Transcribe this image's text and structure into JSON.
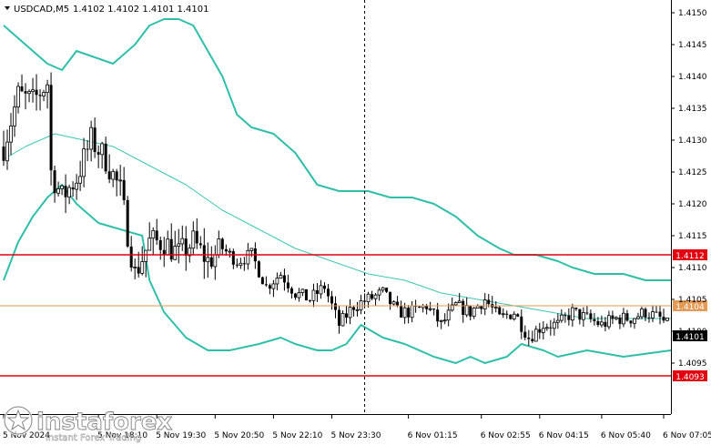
{
  "header": {
    "symbol": "USDCAD,M5",
    "ohlc": "1.4102 1.4102 1.4101 1.4101"
  },
  "watermark": {
    "brand": "instaforex",
    "tagline": "Instant Forex Trading"
  },
  "colors": {
    "candle": "#000000",
    "band": "#2fbfa8",
    "ma": "#3cc6b2",
    "level": "#e3000f",
    "bid": "#e39a55",
    "grid": "#000000",
    "current_price_bg": "#000000"
  },
  "chart_data": {
    "type": "candlestick",
    "ylim": [
      1.4087,
      1.4152
    ],
    "y_ticks": [
      "1.4150",
      "1.4145",
      "1.4140",
      "1.4135",
      "1.4130",
      "1.4125",
      "1.4120",
      "1.4115",
      "1.4110",
      "1.4105",
      "1.4100",
      "1.4095"
    ],
    "x_ticks": [
      {
        "label": "5 Nov 2024",
        "i": 0
      },
      {
        "label": "5 Nov 18:10",
        "i": 26
      },
      {
        "label": "5 Nov 19:30",
        "i": 42
      },
      {
        "label": "5 Nov 20:50",
        "i": 58
      },
      {
        "label": "5 Nov 22:10",
        "i": 74
      },
      {
        "label": "5 Nov 23:30",
        "i": 90
      },
      {
        "label": "6 Nov 01:15",
        "i": 111
      },
      {
        "label": "6 Nov 02:55",
        "i": 131
      },
      {
        "label": "6 Nov 04:15",
        "i": 147
      },
      {
        "label": "6 Nov 05:40",
        "i": 164
      },
      {
        "label": "6 Nov 07:05",
        "i": 181
      }
    ],
    "levels": [
      {
        "name": "resistance",
        "value": 1.4112,
        "label": "1.4112"
      },
      {
        "name": "support",
        "value": 1.4093,
        "label": "1.4093"
      }
    ],
    "bid_line": {
      "value": 1.4104,
      "label": "1.4104"
    },
    "current_price": {
      "value": 1.4101,
      "label": "1.4101"
    },
    "vertical_marker_index": 99,
    "candle_anchors": [
      [
        0,
        1.4129
      ],
      [
        4,
        1.4137
      ],
      [
        8,
        1.4136
      ],
      [
        12,
        1.4139
      ],
      [
        13,
        1.4125
      ],
      [
        16,
        1.4121
      ],
      [
        20,
        1.4124
      ],
      [
        24,
        1.413
      ],
      [
        28,
        1.4127
      ],
      [
        32,
        1.4122
      ],
      [
        36,
        1.4109
      ],
      [
        40,
        1.4114
      ],
      [
        44,
        1.4114
      ],
      [
        48,
        1.4112
      ],
      [
        52,
        1.4114
      ],
      [
        56,
        1.4111
      ],
      [
        60,
        1.4113
      ],
      [
        64,
        1.4111
      ],
      [
        68,
        1.4112
      ],
      [
        72,
        1.4107
      ],
      [
        76,
        1.4109
      ],
      [
        80,
        1.4106
      ],
      [
        84,
        1.4105
      ],
      [
        88,
        1.4107
      ],
      [
        92,
        1.4101
      ],
      [
        96,
        1.4104
      ],
      [
        100,
        1.4105
      ],
      [
        104,
        1.4106
      ],
      [
        108,
        1.4103
      ],
      [
        112,
        1.4103
      ],
      [
        116,
        1.4104
      ],
      [
        120,
        1.4101
      ],
      [
        124,
        1.4104
      ],
      [
        128,
        1.4103
      ],
      [
        132,
        1.4105
      ],
      [
        136,
        1.4102
      ],
      [
        140,
        1.4103
      ],
      [
        144,
        1.4099
      ],
      [
        148,
        1.4101
      ],
      [
        152,
        1.4101
      ],
      [
        156,
        1.4103
      ],
      [
        160,
        1.4102
      ],
      [
        164,
        1.4101
      ],
      [
        168,
        1.4102
      ],
      [
        172,
        1.4102
      ],
      [
        176,
        1.4103
      ],
      [
        180,
        1.4102
      ],
      [
        182,
        1.4101
      ]
    ],
    "series": [
      {
        "kind": "upper-band",
        "points": [
          [
            0,
            1.4148
          ],
          [
            6,
            1.4145
          ],
          [
            12,
            1.4142
          ],
          [
            16,
            1.4141
          ],
          [
            20,
            1.4144
          ],
          [
            30,
            1.4142
          ],
          [
            36,
            1.4145
          ],
          [
            40,
            1.4148
          ],
          [
            44,
            1.4149
          ],
          [
            48,
            1.4149
          ],
          [
            52,
            1.4148
          ],
          [
            56,
            1.4144
          ],
          [
            60,
            1.414
          ],
          [
            64,
            1.4134
          ],
          [
            68,
            1.4132
          ],
          [
            74,
            1.4131
          ],
          [
            80,
            1.4128
          ],
          [
            86,
            1.4123
          ],
          [
            92,
            1.4122
          ],
          [
            100,
            1.4122
          ],
          [
            106,
            1.4121
          ],
          [
            112,
            1.4121
          ],
          [
            118,
            1.412
          ],
          [
            124,
            1.4118
          ],
          [
            130,
            1.4115
          ],
          [
            136,
            1.4113
          ],
          [
            140,
            1.4112
          ],
          [
            146,
            1.4112
          ],
          [
            152,
            1.4111
          ],
          [
            156,
            1.411
          ],
          [
            162,
            1.4109
          ],
          [
            170,
            1.4109
          ],
          [
            176,
            1.4108
          ],
          [
            183,
            1.4108
          ]
        ]
      },
      {
        "kind": "moving-average",
        "points": [
          [
            0,
            1.4127
          ],
          [
            6,
            1.4129
          ],
          [
            14,
            1.4131
          ],
          [
            22,
            1.413
          ],
          [
            30,
            1.4129
          ],
          [
            40,
            1.4126
          ],
          [
            50,
            1.4123
          ],
          [
            60,
            1.4119
          ],
          [
            70,
            1.4116
          ],
          [
            80,
            1.4113
          ],
          [
            90,
            1.4111
          ],
          [
            100,
            1.4109
          ],
          [
            110,
            1.4108
          ],
          [
            120,
            1.4106
          ],
          [
            130,
            1.4105
          ],
          [
            140,
            1.4104
          ],
          [
            150,
            1.4103
          ],
          [
            160,
            1.4102
          ],
          [
            170,
            1.4102
          ],
          [
            183,
            1.4102
          ]
        ]
      },
      {
        "kind": "lower-band",
        "points": [
          [
            0,
            1.4108
          ],
          [
            4,
            1.4114
          ],
          [
            8,
            1.4118
          ],
          [
            12,
            1.4121
          ],
          [
            16,
            1.4123
          ],
          [
            20,
            1.412
          ],
          [
            26,
            1.4117
          ],
          [
            32,
            1.4116
          ],
          [
            38,
            1.4115
          ],
          [
            40,
            1.4108
          ],
          [
            44,
            1.4103
          ],
          [
            50,
            1.4099
          ],
          [
            56,
            1.4097
          ],
          [
            62,
            1.4097
          ],
          [
            70,
            1.4098
          ],
          [
            76,
            1.4099
          ],
          [
            80,
            1.4098
          ],
          [
            86,
            1.4097
          ],
          [
            90,
            1.4097
          ],
          [
            94,
            1.4098
          ],
          [
            98,
            1.4101
          ],
          [
            104,
            1.4099
          ],
          [
            110,
            1.4098
          ],
          [
            118,
            1.4096
          ],
          [
            124,
            1.4095
          ],
          [
            128,
            1.4096
          ],
          [
            132,
            1.4095
          ],
          [
            138,
            1.4096
          ],
          [
            142,
            1.4098
          ],
          [
            148,
            1.4097
          ],
          [
            152,
            1.4096
          ],
          [
            160,
            1.4097
          ],
          [
            170,
            1.4096
          ],
          [
            183,
            1.4097
          ]
        ]
      }
    ]
  }
}
